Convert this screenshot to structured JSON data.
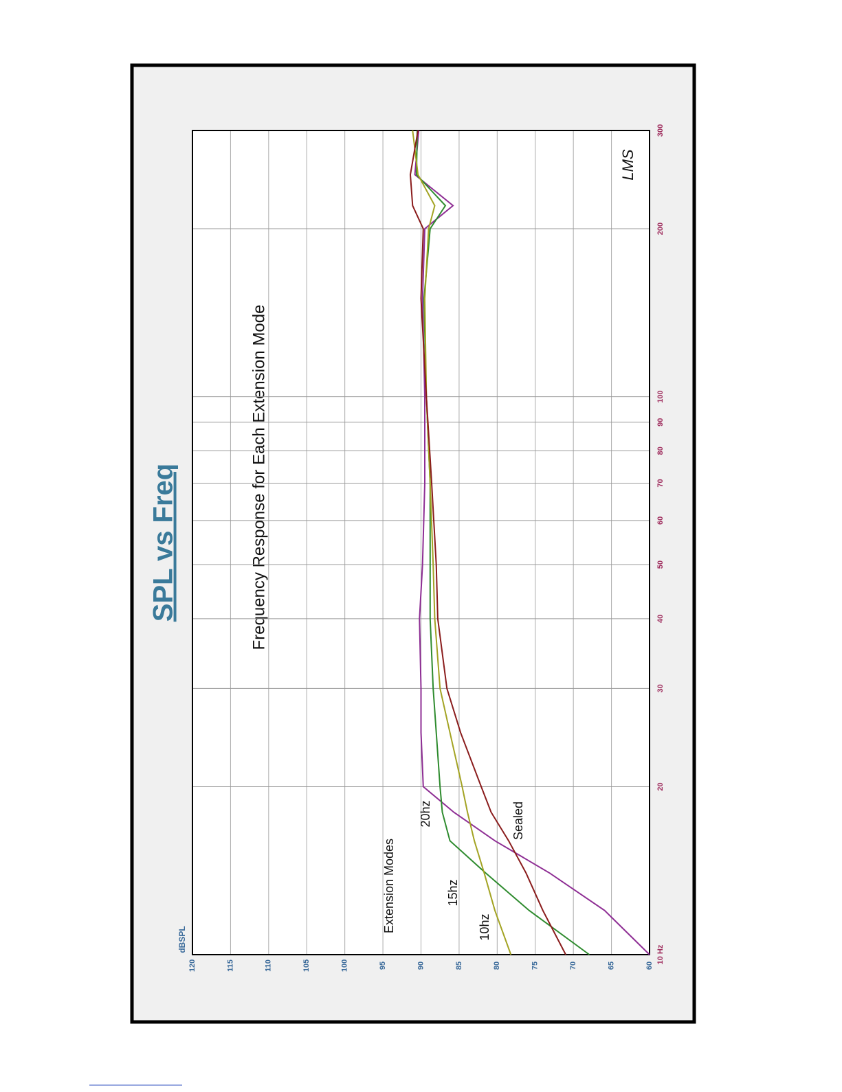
{
  "chart_data": {
    "type": "line",
    "title": "SPL vs Freq",
    "subtitle": "Frequency Response for Each Extension Mode",
    "y_label": "dBSPL",
    "legend_title": "Extension Modes",
    "signature": "LMS",
    "x_log_scale": true,
    "grid": true,
    "x": [
      10,
      12,
      14,
      16,
      18,
      20,
      25,
      30,
      40,
      50,
      70,
      100,
      150,
      200,
      220,
      250,
      300
    ],
    "xlim": [
      10,
      300
    ],
    "xticks": [
      {
        "value": 10,
        "label": "10 Hz"
      },
      20,
      30,
      40,
      50,
      60,
      70,
      80,
      90,
      100,
      200,
      300
    ],
    "ylim": [
      60,
      120
    ],
    "yticks": [
      60,
      65,
      70,
      75,
      80,
      85,
      90,
      95,
      100,
      105,
      110,
      115,
      120
    ],
    "series": [
      {
        "name": "20hz",
        "color": "#8e2e94",
        "values": [
          60,
          65.9,
          73.1,
          80.3,
          85.7,
          89.7,
          90,
          90,
          90.2,
          89.8,
          89.5,
          89.5,
          89.8,
          89.5,
          85.8,
          90.8,
          90.3
        ]
      },
      {
        "name": "15hz",
        "color": "#2e8b2e",
        "values": [
          67.9,
          75.8,
          81.5,
          86.2,
          87.2,
          87.5,
          88,
          88.4,
          88.8,
          88.8,
          88.8,
          89.3,
          89.6,
          88.8,
          86.8,
          90.6,
          90.5
        ]
      },
      {
        "name": "10hz",
        "color": "#a3a323",
        "values": [
          78.2,
          80.3,
          81.7,
          83,
          83.9,
          84.6,
          86.2,
          87.5,
          88.2,
          88.4,
          88.8,
          89.3,
          89.5,
          89,
          88.2,
          90.4,
          91.1
        ]
      },
      {
        "name": "Sealed",
        "color": "#8a1c1c",
        "values": [
          71,
          74,
          76.2,
          78.5,
          80.8,
          82.1,
          84.8,
          86.6,
          87.8,
          88,
          88.6,
          89.3,
          90,
          89.7,
          91.1,
          91.4,
          90.4
        ]
      }
    ]
  }
}
